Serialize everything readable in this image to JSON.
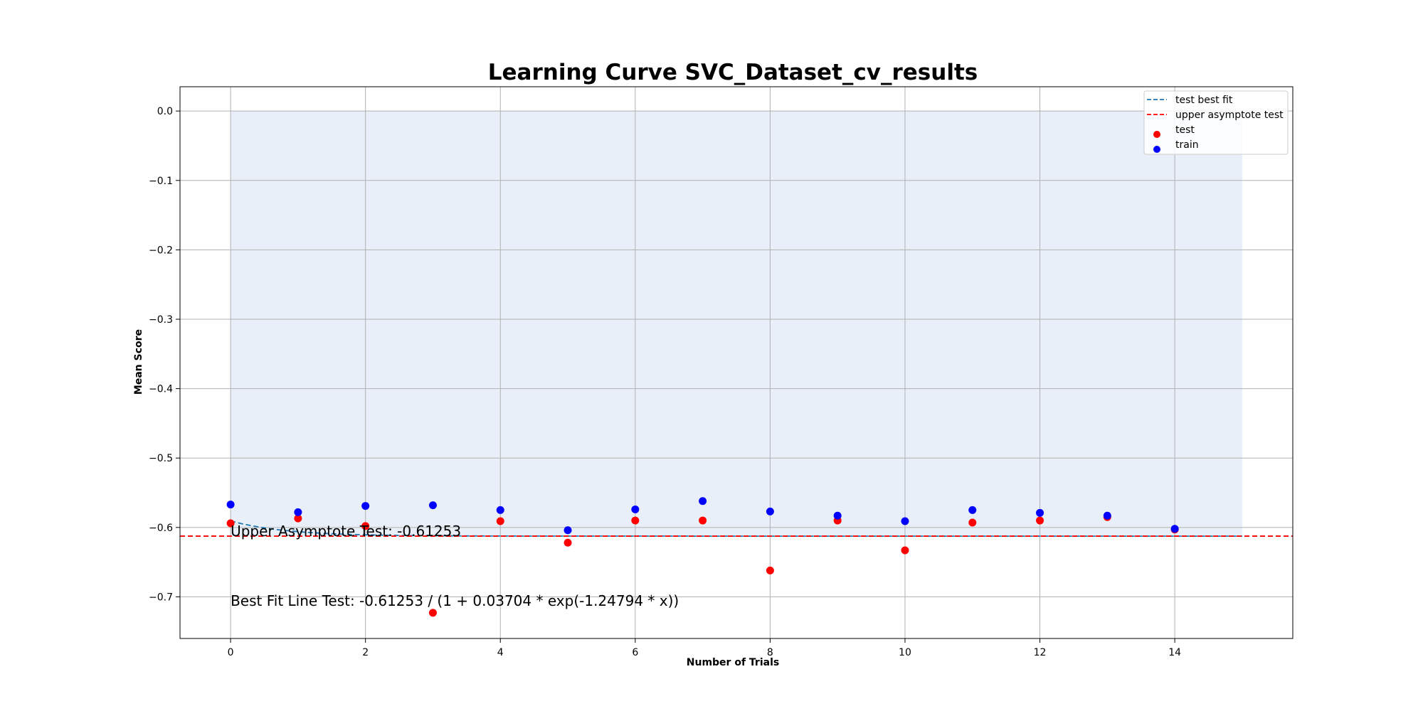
{
  "chart_data": {
    "type": "scatter",
    "title": "Learning Curve SVC_Dataset_cv_results",
    "xlabel": "Number of Trials",
    "ylabel": "Mean Score",
    "xlim": [
      -0.75,
      15.75
    ],
    "ylim": [
      -0.76,
      0.035
    ],
    "xticks": [
      0,
      2,
      4,
      6,
      8,
      10,
      12,
      14
    ],
    "xtick_labels": [
      "0",
      "2",
      "4",
      "6",
      "8",
      "10",
      "12",
      "14"
    ],
    "yticks": [
      0.0,
      -0.1,
      -0.2,
      -0.3,
      -0.4,
      -0.5,
      -0.6,
      -0.7
    ],
    "ytick_labels": [
      "0.0",
      "−0.1",
      "−0.2",
      "−0.3",
      "−0.4",
      "−0.5",
      "−0.6",
      "−0.7"
    ],
    "grid": true,
    "legend_position": "top-right",
    "shaded_region": {
      "x": [
        0,
        15
      ],
      "y": [
        -0.61253,
        0.0
      ],
      "color": "#e8eff8"
    },
    "series": [
      {
        "name": "test best fit",
        "kind": "line",
        "style": "dashed",
        "color": "#1f77b4",
        "asymptote": -0.61253,
        "b": 0.03704,
        "c": -1.24794,
        "x_range": [
          0,
          15
        ]
      },
      {
        "name": "upper asymptote test",
        "kind": "hline",
        "style": "dashed",
        "color": "#ff0000",
        "y": -0.61253
      },
      {
        "name": "test",
        "kind": "scatter",
        "color": "#ff0000",
        "x": [
          0,
          1,
          2,
          3,
          4,
          5,
          6,
          7,
          8,
          9,
          10,
          11,
          12,
          13,
          14
        ],
        "y": [
          -0.594,
          -0.587,
          -0.598,
          -0.723,
          -0.591,
          -0.622,
          -0.59,
          -0.59,
          -0.662,
          -0.59,
          -0.633,
          -0.593,
          -0.59,
          -0.585,
          -0.603
        ]
      },
      {
        "name": "train",
        "kind": "scatter",
        "color": "#0000ff",
        "x": [
          0,
          1,
          2,
          3,
          4,
          5,
          6,
          7,
          8,
          9,
          10,
          11,
          12,
          13,
          14
        ],
        "y": [
          -0.567,
          -0.578,
          -0.569,
          -0.568,
          -0.575,
          -0.604,
          -0.574,
          -0.562,
          -0.577,
          -0.583,
          -0.591,
          -0.575,
          -0.579,
          -0.583,
          -0.602
        ]
      }
    ],
    "annotations": [
      {
        "text": "Upper Asymptote Test: -0.61253",
        "x": 0,
        "y": -0.61253
      },
      {
        "text": "Best Fit Line Test: -0.61253 / (1 + 0.03704 * exp(-1.24794 * x))",
        "x": 0,
        "y": -0.713
      }
    ]
  }
}
